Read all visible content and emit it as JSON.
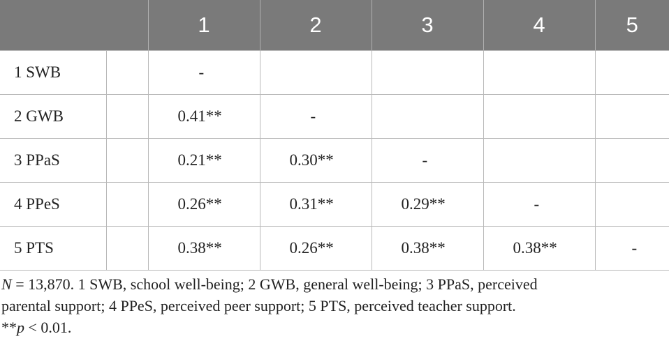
{
  "table": {
    "headers": [
      "",
      "1",
      "2",
      "3",
      "4",
      "5"
    ],
    "rows": [
      {
        "label": "1 SWB",
        "cells": [
          "-",
          "",
          "",
          "",
          ""
        ]
      },
      {
        "label": "2 GWB",
        "cells": [
          "0.41**",
          "-",
          "",
          "",
          ""
        ]
      },
      {
        "label": "3 PPaS",
        "cells": [
          "0.21**",
          "0.30**",
          "-",
          "",
          ""
        ]
      },
      {
        "label": "4 PPeS",
        "cells": [
          "0.26**",
          "0.31**",
          "0.29**",
          "-",
          ""
        ]
      },
      {
        "label": "5 PTS",
        "cells": [
          "0.38**",
          "0.26**",
          "0.38**",
          "0.38**",
          "-"
        ]
      }
    ]
  },
  "note": {
    "n_symbol": "N",
    "line1_rest": " = 13,870. 1 SWB, school well-being; 2 GWB, general well-being; 3 PPaS, perceived",
    "line2": "parental support; 4 PPeS, perceived peer support; 5 PTS, perceived teacher support.",
    "line3_stars": "**",
    "line3_p": "p",
    "line3_rest": " < 0.01."
  }
}
